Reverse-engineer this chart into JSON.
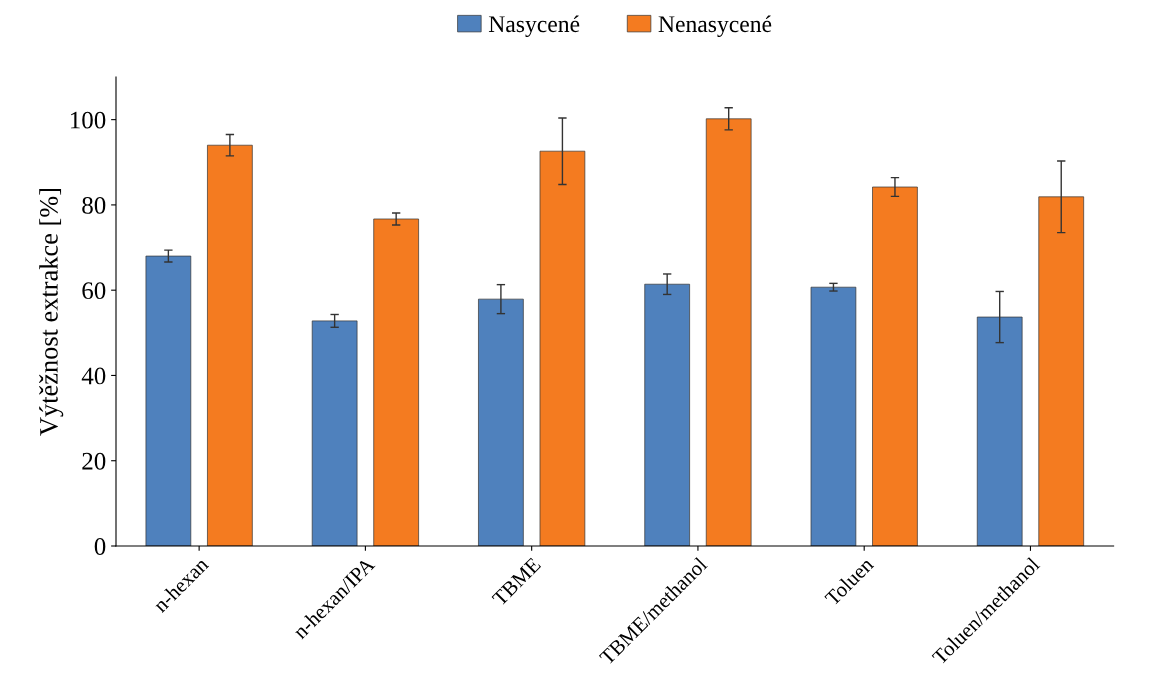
{
  "chart_data": {
    "type": "bar",
    "ylabel": "Výtěžnost extrakce [%]",
    "categories": [
      "n-hexan",
      "n-hexan/IPA",
      "TBME",
      "TBME/methanol",
      "Toluen",
      "Toluen/methanol"
    ],
    "series": [
      {
        "name": "Nasycené",
        "color": "#4f81bd",
        "values": [
          68.0,
          52.8,
          57.9,
          61.4,
          60.7,
          53.7
        ],
        "errors": [
          1.4,
          1.5,
          3.4,
          2.4,
          0.9,
          6.0
        ]
      },
      {
        "name": "Nenasycené",
        "color": "#f47b20",
        "values": [
          94.0,
          76.7,
          92.6,
          100.2,
          84.2,
          81.9
        ],
        "errors": [
          2.5,
          1.4,
          7.8,
          2.6,
          2.2,
          8.4
        ]
      }
    ],
    "ylim": [
      0,
      110
    ],
    "yticks": [
      0,
      20,
      40,
      60,
      80,
      100
    ],
    "grid": false,
    "legend": "top"
  }
}
